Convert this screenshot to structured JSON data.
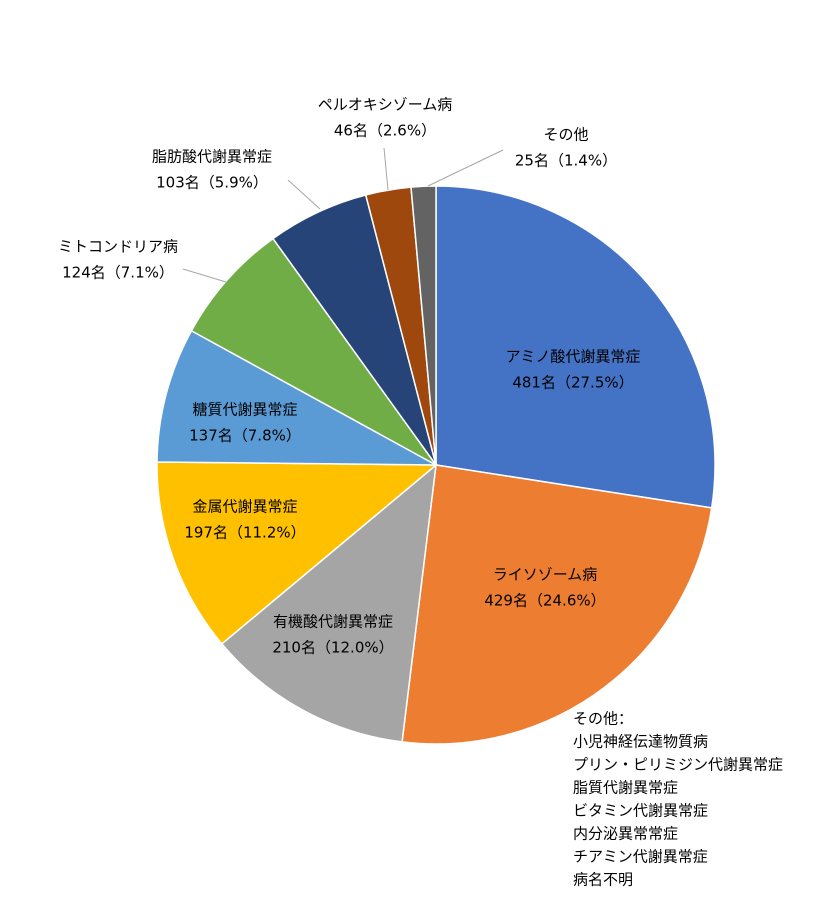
{
  "chart_data": {
    "type": "pie",
    "categories": [
      "アミノ酸代謝異常症",
      "ライソゾーム病",
      "有機酸代謝異常症",
      "金属代謝異常症",
      "糖質代謝異常症",
      "ミトコンドリア病",
      "脂肪酸代謝異常症",
      "ペルオキシゾーム病",
      "その他"
    ],
    "values": [
      481,
      429,
      210,
      197,
      137,
      124,
      103,
      46,
      25
    ],
    "value_labels": [
      "481名（27.5%）",
      "429名（24.6%）",
      "210名（12.0%）",
      "197名（11.2%）",
      "137名（7.8%）",
      "124名（7.1%）",
      "103名（5.9%）",
      "46名（2.6%）",
      "25名（1.4%）"
    ],
    "colors": [
      "#4472c4",
      "#ed7d31",
      "#a5a5a5",
      "#ffc000",
      "#5b9bd5",
      "#70ad47",
      "#264478",
      "#9e480e",
      "#636363"
    ],
    "note": {
      "title": "その他：",
      "items": [
        "小児神経伝達物質病",
        "プリン・ピリミジン代謝異常症",
        "脂質代謝異常症",
        "ビタミン代謝異常症",
        "内分泌異常常症",
        "チアミン代謝異常症",
        "病名不明"
      ]
    }
  }
}
